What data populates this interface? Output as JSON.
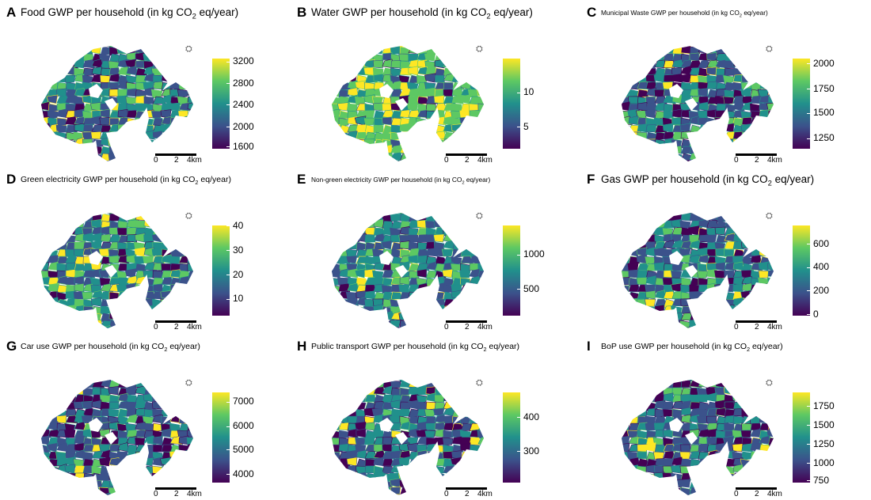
{
  "panels": [
    {
      "label": "A",
      "title_pre": "Food GWP per household (in kg CO",
      "title_post": " eq/year)",
      "size": "big",
      "ticks": [
        "3200",
        "2800",
        "2400",
        "2000",
        "1600"
      ],
      "tickpos": [
        0.03,
        0.27,
        0.51,
        0.75,
        0.97
      ]
    },
    {
      "label": "B",
      "title_pre": "Water GWP per household (in kg CO",
      "title_post": " eq/year)",
      "size": "big",
      "ticks": [
        "10",
        "5"
      ],
      "tickpos": [
        0.37,
        0.75
      ]
    },
    {
      "label": "C",
      "title_pre": "Municipal Waste GWP per household (in kg CO",
      "title_post": " eq/year)",
      "size": "sm",
      "ticks": [
        "2000",
        "1750",
        "1500",
        "1250"
      ],
      "tickpos": [
        0.05,
        0.33,
        0.6,
        0.88
      ]
    },
    {
      "label": "D",
      "title_pre": "Green electricity GWP per household (in kg CO",
      "title_post": " eq/year)",
      "size": "mid",
      "ticks": [
        "40",
        "30",
        "20",
        "10"
      ],
      "tickpos": [
        0.0,
        0.27,
        0.54,
        0.81
      ]
    },
    {
      "label": "E",
      "title_pre": "Non-green electricity GWP per household (in kg CO",
      "title_post": " eq/year)",
      "size": "sm",
      "ticks": [
        "1000",
        "500"
      ],
      "tickpos": [
        0.32,
        0.7
      ]
    },
    {
      "label": "F",
      "title_pre": "Gas GWP per household (in kg CO",
      "title_post": " eq/year)",
      "size": "big",
      "ticks": [
        "600",
        "400",
        "200",
        "0"
      ],
      "tickpos": [
        0.2,
        0.46,
        0.72,
        0.98
      ]
    },
    {
      "label": "G",
      "title_pre": "Car use GWP per household (in kg CO",
      "title_post": " eq/year)",
      "size": "mid",
      "ticks": [
        "7000",
        "6000",
        "5000",
        "4000"
      ],
      "tickpos": [
        0.1,
        0.37,
        0.63,
        0.9
      ]
    },
    {
      "label": "H",
      "title_pre": "Public transport GWP per household (in kg CO",
      "title_post": " eq/year)",
      "size": "mid",
      "ticks": [
        "400",
        "300"
      ],
      "tickpos": [
        0.27,
        0.65
      ]
    },
    {
      "label": "I",
      "title_pre": "BoP use GWP per household (in kg CO",
      "title_post": " eq/year)",
      "size": "mid",
      "ticks": [
        "1750",
        "1500",
        "1250",
        "1000",
        "750"
      ],
      "tickpos": [
        0.15,
        0.36,
        0.57,
        0.78,
        0.97
      ]
    }
  ],
  "title_sub": "2",
  "scale": {
    "t0": "0",
    "t1": "2",
    "t2": "4km"
  },
  "north_symbol": "⛭",
  "palette": [
    "#440154",
    "#3b528b",
    "#21908c",
    "#5dc863",
    "#fde725"
  ]
}
